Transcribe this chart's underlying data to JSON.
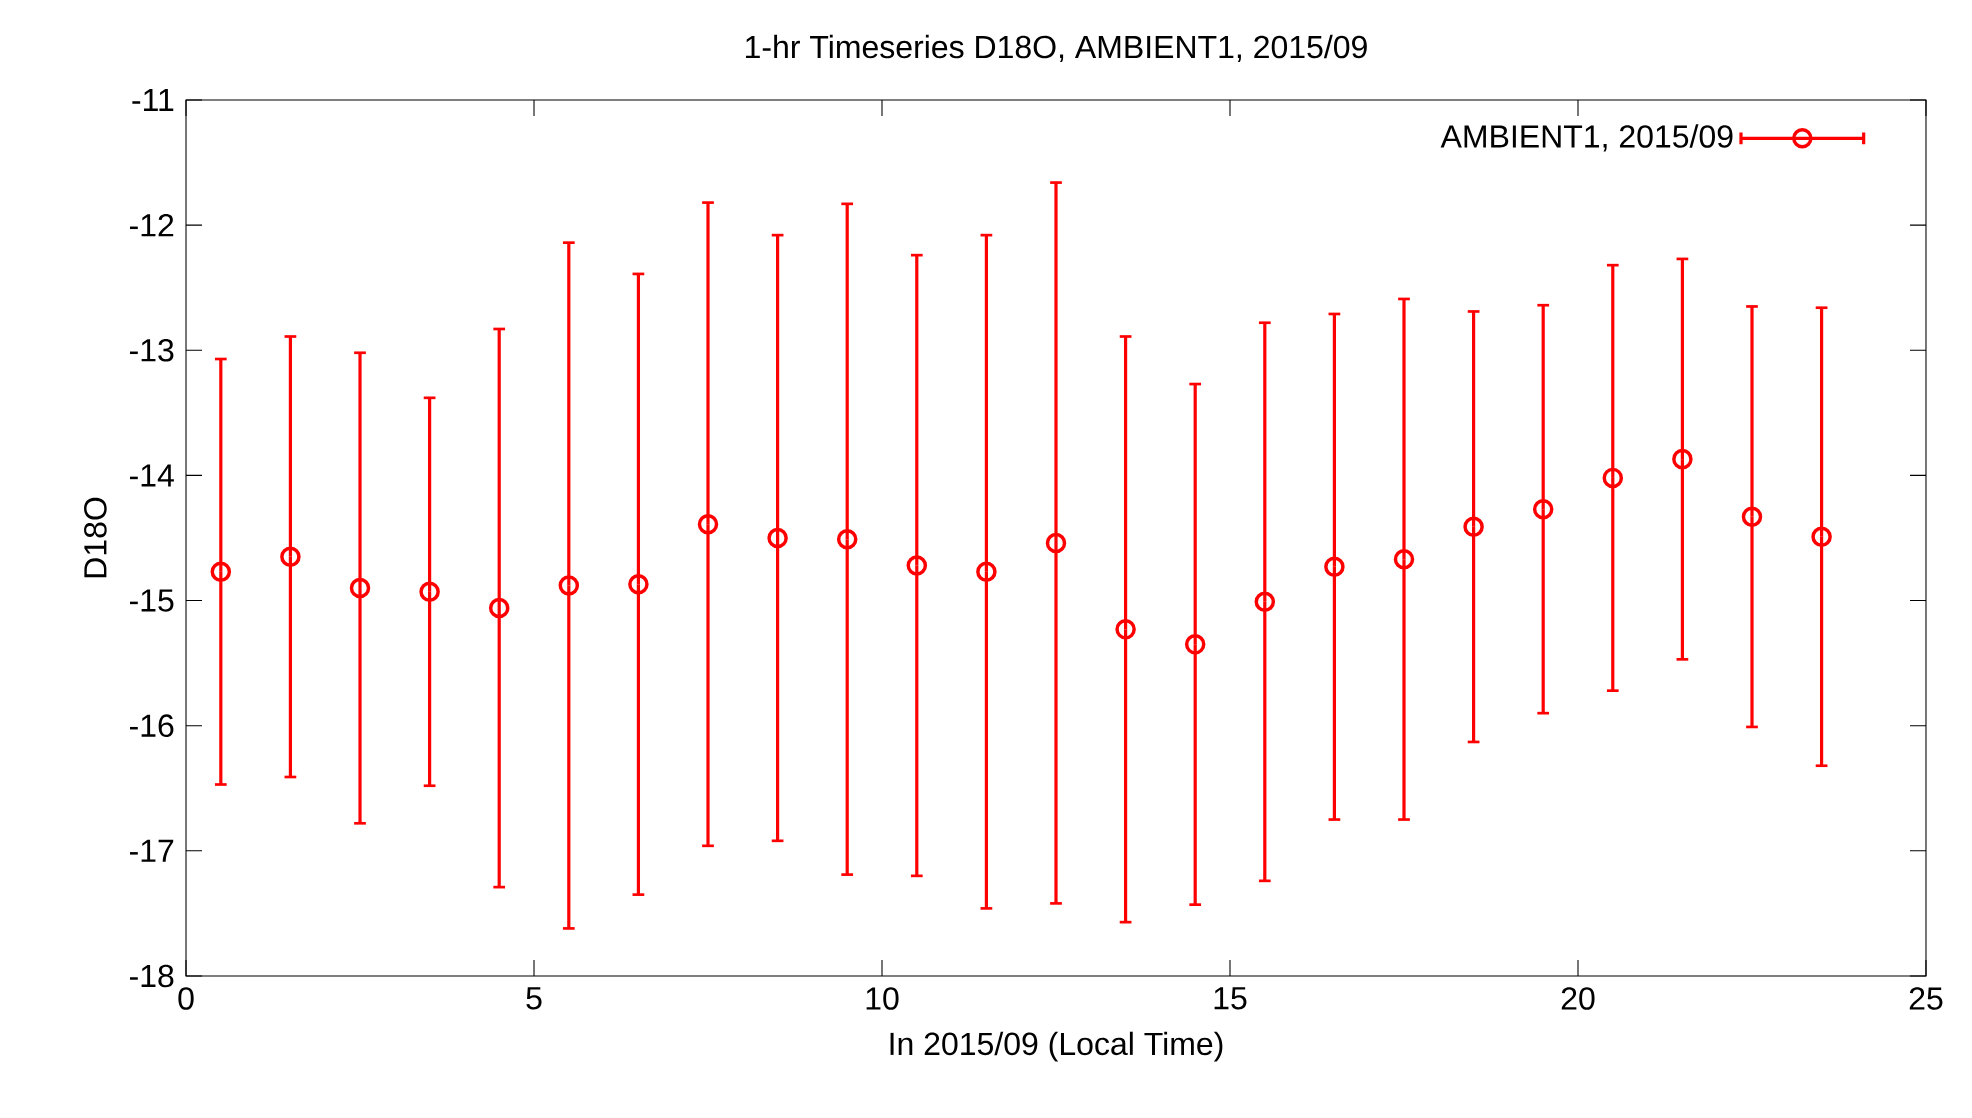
{
  "chart_data": {
    "type": "scatter",
    "title": "1-hr Timeseries D18O, AMBIENT1, 2015/09",
    "xlabel": "In 2015/09 (Local Time)",
    "ylabel": "D18O",
    "x": [
      0.5,
      1.5,
      2.5,
      3.5,
      4.5,
      5.5,
      6.5,
      7.5,
      8.5,
      9.5,
      10.5,
      11.5,
      12.5,
      13.5,
      14.5,
      15.5,
      16.5,
      17.5,
      18.5,
      19.5,
      20.5,
      21.5,
      22.5,
      23.5
    ],
    "series": [
      {
        "name": "AMBIENT1, 2015/09",
        "color": "#ff0000",
        "values": [
          -14.77,
          -14.65,
          -14.9,
          -14.93,
          -15.06,
          -14.88,
          -14.87,
          -14.39,
          -14.5,
          -14.51,
          -14.72,
          -14.77,
          -14.54,
          -15.23,
          -15.35,
          -15.01,
          -14.73,
          -14.67,
          -14.41,
          -14.27,
          -14.02,
          -13.87,
          -14.33,
          -14.49
        ],
        "errors": [
          1.7,
          1.76,
          1.88,
          1.55,
          2.23,
          2.74,
          2.48,
          2.57,
          2.42,
          2.68,
          2.48,
          2.69,
          2.88,
          2.34,
          2.08,
          2.23,
          2.02,
          2.08,
          1.72,
          1.63,
          1.7,
          1.6,
          1.68,
          1.83
        ]
      }
    ],
    "xlim": [
      0,
      25
    ],
    "xticks": [
      0,
      5,
      10,
      15,
      20,
      25
    ],
    "ylim": [
      -18,
      -11
    ],
    "yticks": [
      -18,
      -17,
      -16,
      -15,
      -14,
      -13,
      -12,
      -11
    ],
    "legend": "top right",
    "marker": "circle",
    "grid": false
  }
}
